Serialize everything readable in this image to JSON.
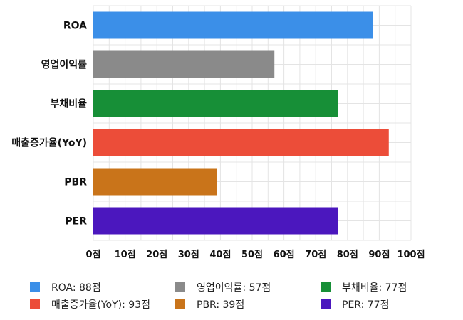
{
  "chart_data": {
    "type": "bar",
    "orientation": "horizontal",
    "categories": [
      "ROA",
      "영업이익률",
      "부채비율",
      "매출증가율(YoY)",
      "PBR",
      "PER"
    ],
    "values": [
      88,
      57,
      77,
      93,
      39,
      77
    ],
    "colors": [
      "#3b8fe8",
      "#8a8a8a",
      "#178f37",
      "#ec4d39",
      "#c9741a",
      "#4b17be"
    ],
    "xlim": [
      0,
      100
    ],
    "xticks": [
      "0점",
      "10점",
      "20점",
      "30점",
      "40점",
      "50점",
      "60점",
      "70점",
      "80점",
      "90점",
      "100점"
    ],
    "grid": true,
    "legend_position": "bottom",
    "legend": [
      "ROA: 88점",
      "영업이익률: 57점",
      "부채비율: 77점",
      "매출증가율(YoY): 93점",
      "PBR: 39점",
      "PER: 77점"
    ]
  }
}
